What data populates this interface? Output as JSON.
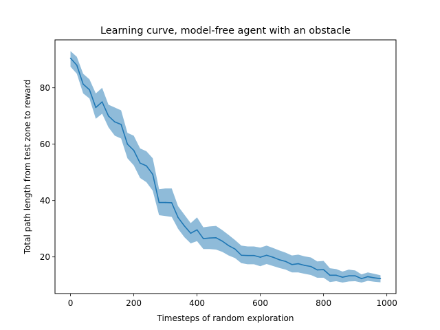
{
  "chart_data": {
    "type": "line",
    "title": "Learning curve, model-free agent with an obstacle",
    "xlabel": "Timesteps of random exploration",
    "ylabel": "Total path length from test zone to reward",
    "xlim": [
      -49,
      1029
    ],
    "ylim": [
      7,
      97
    ],
    "xticks": [
      0,
      200,
      400,
      600,
      800,
      1000
    ],
    "xtick_labels": [
      "0",
      "200",
      "400",
      "600",
      "800",
      "1000"
    ],
    "yticks": [
      20,
      40,
      60,
      80
    ],
    "ytick_labels": [
      "20",
      "40",
      "60",
      "80"
    ],
    "grid": false,
    "legend": "none",
    "line_color": "#1f77b4",
    "band_color": "#1f77b4",
    "band_opacity": 0.5,
    "series": [
      {
        "x": [
          0,
          20,
          40,
          60,
          80,
          100,
          120,
          140,
          160,
          180,
          200,
          220,
          240,
          260,
          280,
          300,
          320,
          340,
          360,
          380,
          400,
          420,
          440,
          460,
          480,
          500,
          520,
          540,
          560,
          580,
          600,
          620,
          640,
          660,
          680,
          700,
          720,
          740,
          760,
          780,
          800,
          820,
          840,
          860,
          880,
          900,
          920,
          940,
          960,
          980
        ],
        "y": [
          90.5,
          88,
          81.3,
          79.3,
          73,
          75,
          70,
          67.9,
          67,
          60,
          57.8,
          53.3,
          52.3,
          49.3,
          39.3,
          39.3,
          39.2,
          34,
          31,
          28.4,
          29.6,
          26.5,
          26.7,
          26.8,
          25.6,
          24,
          22.8,
          20.6,
          20.5,
          20.5,
          19.9,
          20.6,
          19.9,
          19,
          18.4,
          17.3,
          17.6,
          17,
          16.6,
          15.4,
          15.5,
          13.5,
          13.5,
          12.8,
          13.3,
          13.3,
          12.3,
          13,
          12.6,
          12.3
        ],
        "upper": [
          93,
          91,
          85,
          83,
          78,
          80,
          74,
          73,
          72,
          64,
          63,
          58.5,
          57.5,
          55,
          44,
          44.3,
          44.3,
          38,
          35,
          32,
          34,
          30.5,
          30.8,
          31,
          29.5,
          27.8,
          26,
          24,
          23.7,
          23.7,
          23.3,
          24,
          23.2,
          22.3,
          21.5,
          20.5,
          20.8,
          20.2,
          19.8,
          18.4,
          18.6,
          16,
          15.7,
          14.8,
          15.5,
          15.2,
          13.8,
          14.5,
          14,
          13.5
        ],
        "lower": [
          87.5,
          85,
          78,
          76.2,
          69,
          70.8,
          66,
          63,
          62,
          55,
          52.5,
          48,
          46.5,
          43.5,
          34.8,
          34.5,
          34.2,
          30,
          27,
          24.8,
          25.6,
          22.8,
          22.8,
          22.6,
          21.8,
          20.5,
          19.6,
          17.8,
          17.4,
          17.4,
          16.7,
          17.5,
          16.8,
          16.1,
          15.5,
          14.5,
          14.5,
          14,
          13.6,
          12.6,
          12.6,
          11.1,
          11.4,
          10.9,
          11.3,
          11.4,
          10.9,
          11.5,
          11.2,
          11
        ]
      }
    ]
  }
}
